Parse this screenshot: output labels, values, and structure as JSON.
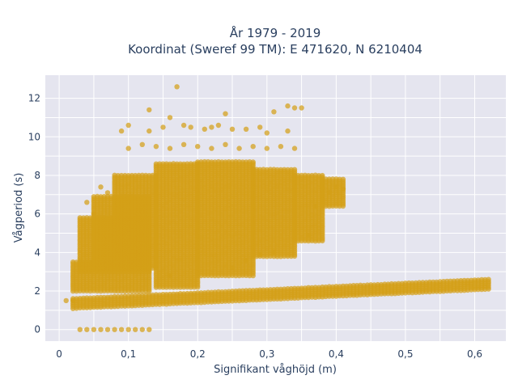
{
  "chart_data": {
    "type": "scatter",
    "title": "År 1979 - 2019",
    "subtitle": "Koordinat (Sweref 99 TM): E 471620, N 6210404",
    "xlabel": "Signifikant våghöjd (m)",
    "ylabel": "Vågperiod (s)",
    "xlim": [
      -0.02,
      0.645
    ],
    "ylim": [
      -0.6,
      13.2
    ],
    "x_ticks": [
      0,
      0.1,
      0.2,
      0.3,
      0.4,
      0.5,
      0.6
    ],
    "x_tick_labels": [
      "0",
      "0,1",
      "0,2",
      "0,3",
      "0,4",
      "0,5",
      "0,6"
    ],
    "y_ticks": [
      0,
      2,
      4,
      6,
      8,
      10,
      12
    ],
    "y_tick_labels": [
      "0",
      "2",
      "4",
      "6",
      "8",
      "10",
      "12"
    ],
    "grid": true,
    "legend": "none",
    "marker_color": "#d4a017",
    "plot_background": "#e5e5ef",
    "series": [
      {
        "points": [
          [
            0.01,
            1.5
          ],
          [
            0.02,
            1.5
          ],
          [
            0.03,
            0.0
          ],
          [
            0.04,
            0.0
          ],
          [
            0.05,
            0.0
          ],
          [
            0.06,
            0.0
          ],
          [
            0.07,
            0.0
          ],
          [
            0.08,
            0.0
          ],
          [
            0.09,
            0.0
          ],
          [
            0.1,
            0.0
          ],
          [
            0.11,
            0.0
          ],
          [
            0.12,
            0.0
          ],
          [
            0.13,
            0.0
          ],
          [
            0.17,
            12.6
          ],
          [
            0.13,
            11.4
          ],
          [
            0.16,
            11.0
          ],
          [
            0.24,
            11.2
          ],
          [
            0.31,
            11.3
          ],
          [
            0.33,
            11.6
          ],
          [
            0.34,
            11.5
          ],
          [
            0.35,
            11.5
          ],
          [
            0.09,
            10.3
          ],
          [
            0.1,
            10.6
          ],
          [
            0.13,
            10.3
          ],
          [
            0.15,
            10.5
          ],
          [
            0.18,
            10.6
          ],
          [
            0.19,
            10.5
          ],
          [
            0.21,
            10.4
          ],
          [
            0.22,
            10.5
          ],
          [
            0.23,
            10.6
          ],
          [
            0.25,
            10.4
          ],
          [
            0.27,
            10.4
          ],
          [
            0.29,
            10.5
          ],
          [
            0.3,
            10.2
          ],
          [
            0.33,
            10.3
          ],
          [
            0.1,
            9.4
          ],
          [
            0.12,
            9.6
          ],
          [
            0.14,
            9.5
          ],
          [
            0.16,
            9.4
          ],
          [
            0.18,
            9.6
          ],
          [
            0.2,
            9.5
          ],
          [
            0.22,
            9.4
          ],
          [
            0.24,
            9.6
          ],
          [
            0.26,
            9.4
          ],
          [
            0.28,
            9.5
          ],
          [
            0.3,
            9.4
          ],
          [
            0.32,
            9.5
          ],
          [
            0.34,
            9.4
          ],
          [
            0.06,
            7.4
          ],
          [
            0.07,
            7.1
          ],
          [
            0.37,
            6.4
          ],
          [
            0.38,
            6.7
          ],
          [
            0.39,
            7.1
          ],
          [
            0.4,
            7.4
          ],
          [
            0.41,
            7.3
          ],
          [
            0.36,
            4.9
          ],
          [
            0.31,
            4.0
          ],
          [
            0.29,
            3.9
          ],
          [
            0.27,
            3.6
          ],
          [
            0.25,
            3.2
          ],
          [
            0.16,
            2.8
          ],
          [
            0.04,
            6.6
          ],
          [
            0.05,
            6.0
          ]
        ],
        "bands": [
          {
            "x_from": 0.02,
            "x_to": 0.13,
            "y_from": 2.0,
            "y_to": 3.5
          },
          {
            "x_from": 0.03,
            "x_to": 0.13,
            "y_from": 3.0,
            "y_to": 5.8
          },
          {
            "x_from": 0.05,
            "x_to": 0.13,
            "y_from": 3.3,
            "y_to": 6.9
          },
          {
            "x_from": 0.08,
            "x_to": 0.14,
            "y_from": 3.2,
            "y_to": 8.0
          },
          {
            "x_from": 0.14,
            "x_to": 0.2,
            "y_from": 2.2,
            "y_to": 8.6
          },
          {
            "x_from": 0.2,
            "x_to": 0.28,
            "y_from": 2.8,
            "y_to": 8.7
          },
          {
            "x_from": 0.28,
            "x_to": 0.34,
            "y_from": 3.8,
            "y_to": 8.3
          },
          {
            "x_from": 0.34,
            "x_to": 0.38,
            "y_from": 4.6,
            "y_to": 8.0
          },
          {
            "x_from": 0.38,
            "x_to": 0.41,
            "y_from": 6.4,
            "y_to": 7.8
          },
          {
            "x_from": 0.02,
            "x_to": 0.62,
            "y_from": 1.1,
            "y_to": 1.6,
            "y_to_end": 2.6
          }
        ]
      }
    ]
  }
}
